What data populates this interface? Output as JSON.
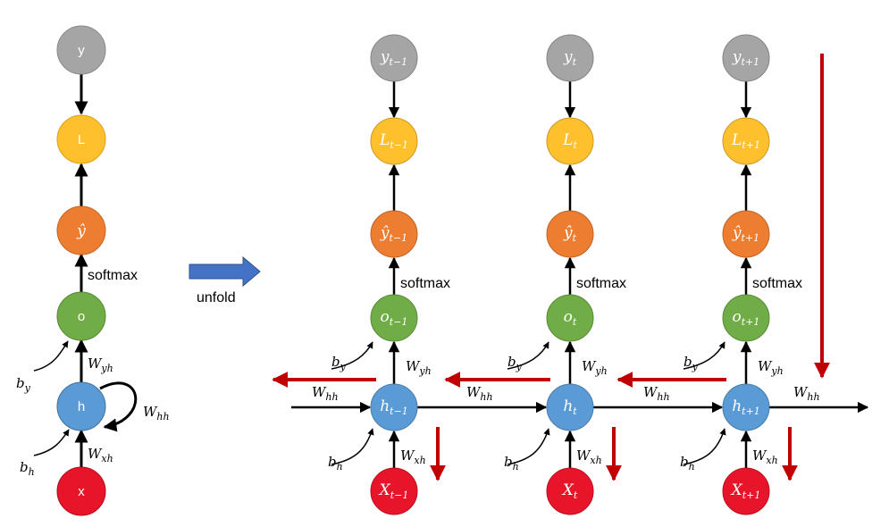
{
  "colors": {
    "y": "#A5A5A5",
    "L": "#FFC02E",
    "yhat": "#ED7D31",
    "o": "#70AD47",
    "h": "#5B9BD5",
    "x": "#E8142A",
    "arrow": "#000000",
    "gradient_arrow": "#C00000",
    "unfold_arrow": "#4472C4"
  },
  "folded": {
    "nodes": {
      "y": "y",
      "L": "L",
      "yhat": "ŷ",
      "o": "o",
      "h": "h",
      "x": "x"
    },
    "labels": {
      "softmax": "softmax",
      "W_yh": "W",
      "W_yh_sub": "yh",
      "b_y": "b",
      "b_y_sub": "y",
      "W_hh": "W",
      "W_hh_sub": "hh",
      "b_h": "b",
      "b_h_sub": "h",
      "W_xh": "W",
      "W_xh_sub": "xh"
    }
  },
  "unfold": {
    "label": "unfold"
  },
  "steps": [
    {
      "y": "y",
      "y_sub": "t−1",
      "L": "L",
      "L_sub": "t−1",
      "yhat": "ŷ",
      "yhat_sub": "t−1",
      "o": "o",
      "o_sub": "t−1",
      "h": "h",
      "h_sub": "t−1",
      "x": "X",
      "x_sub": "t−1",
      "softmax": "softmax",
      "W_yh": "W",
      "W_yh_sub": "yh",
      "b_y": "b",
      "b_y_sub": "y",
      "b_h": "b",
      "b_h_sub": "h",
      "W_xh": "W",
      "W_xh_sub": "xh"
    },
    {
      "y": "y",
      "y_sub": "t",
      "L": "L",
      "L_sub": "t",
      "yhat": "ŷ",
      "yhat_sub": "t",
      "o": "o",
      "o_sub": "t",
      "h": "h",
      "h_sub": "t",
      "x": "X",
      "x_sub": "t",
      "softmax": "softmax",
      "W_yh": "W",
      "W_yh_sub": "yh",
      "b_y": "b",
      "b_y_sub": "y",
      "b_h": "b",
      "b_h_sub": "h",
      "W_xh": "W",
      "W_xh_sub": "xh"
    },
    {
      "y": "y",
      "y_sub": "t+1",
      "L": "L",
      "L_sub": "t+1",
      "yhat": "ŷ",
      "yhat_sub": "t+1",
      "o": "o",
      "o_sub": "t+1",
      "h": "h",
      "h_sub": "t+1",
      "x": "X",
      "x_sub": "t+1",
      "softmax": "softmax",
      "W_yh": "W",
      "W_yh_sub": "yh",
      "b_y": "b",
      "b_y_sub": "y",
      "b_h": "b",
      "b_h_sub": "h",
      "W_xh": "W",
      "W_xh_sub": "xh"
    }
  ],
  "hidden_links": [
    {
      "W": "W",
      "sub": "hh"
    },
    {
      "W": "W",
      "sub": "hh"
    },
    {
      "W": "W",
      "sub": "hh"
    },
    {
      "W": "W",
      "sub": "hh"
    }
  ]
}
